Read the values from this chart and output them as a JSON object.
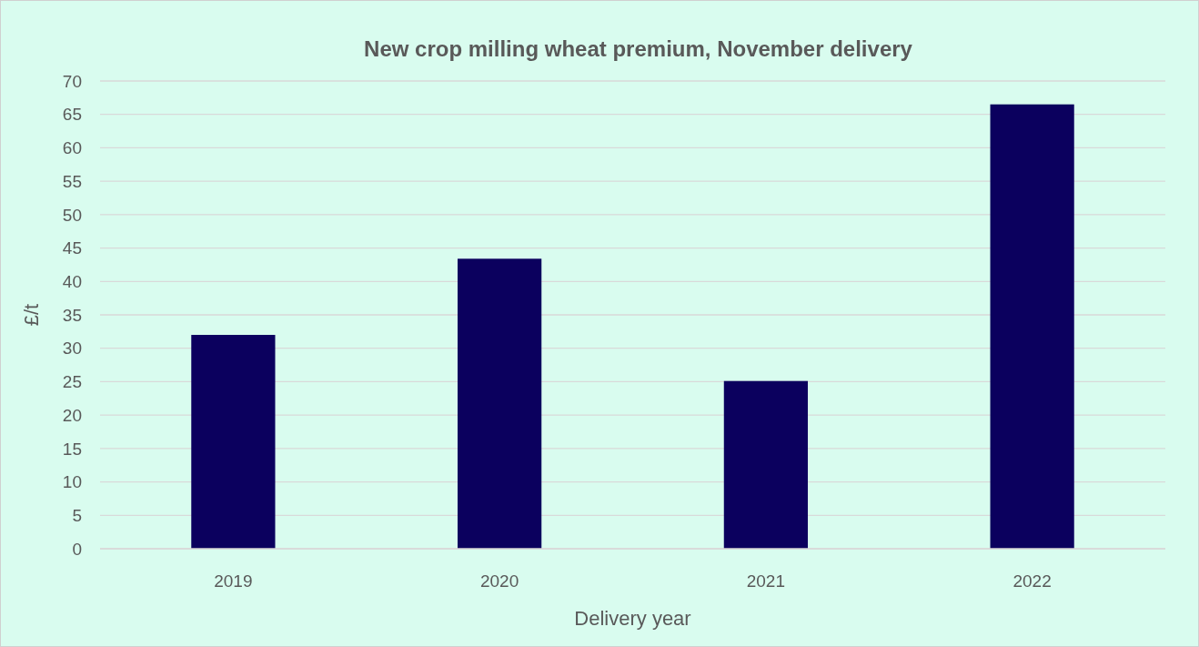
{
  "chart_data": {
    "type": "bar",
    "title": "New crop milling wheat premium, November delivery",
    "xlabel": "Delivery year",
    "ylabel": "£/t",
    "categories": [
      "2019",
      "2020",
      "2021",
      "2022"
    ],
    "values": [
      32,
      43.4,
      25.1,
      66.5
    ],
    "color": "#0b005e",
    "ylim": [
      0,
      70
    ],
    "yticks": [
      0,
      5,
      10,
      15,
      20,
      25,
      30,
      35,
      40,
      45,
      50,
      55,
      60,
      65,
      70
    ],
    "grid": "y"
  }
}
